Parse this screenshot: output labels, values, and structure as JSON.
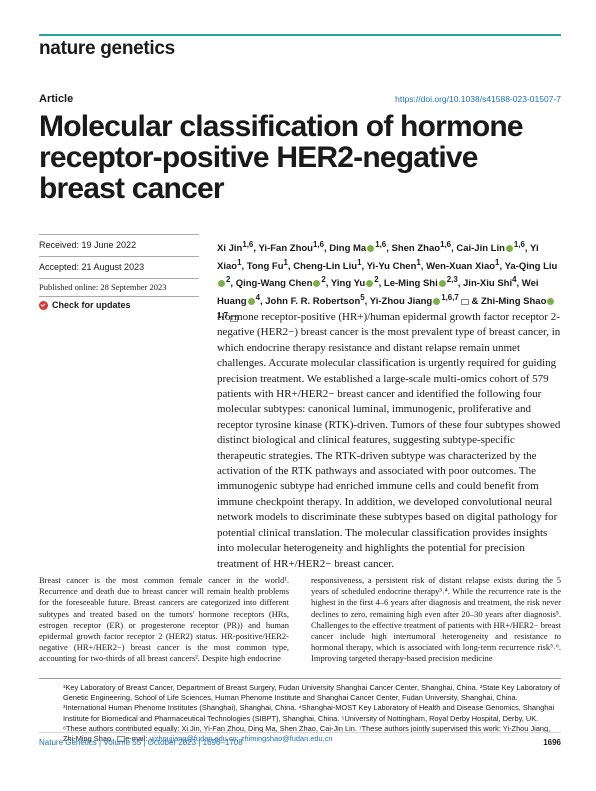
{
  "journal": {
    "name": "nature genetics"
  },
  "article": {
    "type": "Article",
    "doi": "https://doi.org/10.1038/s41588-023-01507-7",
    "title": "Molecular classification of hormone receptor-positive HER2-negative breast cancer"
  },
  "dates": {
    "received": "Received: 19 June 2022",
    "accepted": "Accepted: 21 August 2023",
    "published": "Published online: 28 September 2023"
  },
  "check_updates": "Check for updates",
  "authors": {
    "line1": "Xi Jin",
    "line1_sup": "1,6",
    "a2": "Yi-Fan Zhou",
    "a2_sup": "1,6",
    "a3": "Ding Ma",
    "a3_sup": "1,6",
    "a4": "Shen Zhao",
    "a4_sup": "1,6",
    "a5": "Cai-Jin Lin",
    "a5_sup": "1,6",
    "a6": "Yi Xiao",
    "a6_sup": "1",
    "a7": "Tong Fu",
    "a7_sup": "1",
    "a8": "Cheng-Lin Liu",
    "a8_sup": "1",
    "a9": "Yi-Yu Chen",
    "a9_sup": "1",
    "a10": "Wen-Xuan Xiao",
    "a10_sup": "1",
    "a11": "Ya-Qing Liu",
    "a11_sup": "2",
    "a12": "Qing-Wang Chen",
    "a12_sup": "2",
    "a13": "Ying Yu",
    "a13_sup": "2",
    "a14": "Le-Ming Shi",
    "a14_sup": "2,3",
    "a15": "Jin-Xiu Shi",
    "a15_sup": "4",
    "a16": "Wei Huang",
    "a16_sup": "4",
    "a17": "John F. R. Robertson",
    "a17_sup": "5",
    "a18": "Yi-Zhou Jiang",
    "a18_sup": "1,6,7",
    "a19": "Zhi-Ming Shao",
    "a19_sup": "1,7"
  },
  "abstract": "Hormone receptor-positive (HR+)/human epidermal growth factor receptor 2-negative (HER2−) breast cancer is the most prevalent type of breast cancer, in which endocrine therapy resistance and distant relapse remain unmet challenges. Accurate molecular classification is urgently required for guiding precision treatment. We established a large-scale multi-omics cohort of 579 patients with HR+/HER2− breast cancer and identified the following four molecular subtypes: canonical luminal, immunogenic, proliferative and receptor tyrosine kinase (RTK)-driven. Tumors of these four subtypes showed distinct biological and clinical features, suggesting subtype-specific therapeutic strategies. The RTK-driven subtype was characterized by the activation of the RTK pathways and associated with poor outcomes. The immunogenic subtype had enriched immune cells and could benefit from immune checkpoint therapy. In addition, we developed convolutional neural network models to discriminate these subtypes based on digital pathology for potential clinical translation. The molecular classification provides insights into molecular heterogeneity and highlights the potential for precision treatment of HR+/HER2− breast cancer.",
  "body": {
    "col1": "Breast cancer is the most common female cancer in the world¹. Recurrence and death due to breast cancer will remain health problems for the foreseeable future. Breast cancers are categorized into different subtypes and treated based on the tumors' hormone receptors (HRs, estrogen receptor (ER) or progesterone receptor (PR)) and human epidermal growth factor receptor 2 (HER2) status. HR-positive/HER2-negative (HR+/HER2−) breast cancer is the most common type, accounting for two-thirds of all breast cancers². Despite high endocrine",
    "col2": "responsiveness, a persistent risk of distant relapse exists during the 5 years of scheduled endocrine therapy³˒⁴. While the recurrence rate is the highest in the first 4–6 years after diagnosis and treatment, the risk never declines to zero, remaining high even after 20–30 years after diagnosis⁵. Challenges to the effective treatment of patients with HR+/HER2− breast cancer include high intertumoral heterogeneity and resistance to hormonal therapy, which is associated with long-term recurrence risk⁵˒⁶. Improving targeted therapy-based precision medicine"
  },
  "footnotes": {
    "affiliations": "¹Key Laboratory of Breast Cancer, Department of Breast Surgery, Fudan University Shanghai Cancer Center, Shanghai, China. ²State Key Laboratory of Genetic Engineering, School of Life Sciences, Human Phenome Institute and Shanghai Cancer Center, Fudan University, Shanghai, China. ³International Human Phenome Institutes (Shanghai), Shanghai, China. ⁴Shanghai-MOST Key Laboratory of Health and Disease Genomics, Shanghai Institute for Biomedical and Pharmaceutical Technologies (SIBPT), Shanghai, China. ⁵University of Nottingham, Royal Derby Hospital, Derby, UK. ⁶These authors contributed equally: Xi Jin, Yi-Fan Zhou, Ding Ma, Shen Zhao, Cai-Jin Lin. ⁷These authors jointly supervised this work: Yi-Zhou Jiang, Zhi-Ming Shao.",
    "email_label": "e-mail:",
    "emails": "yizhoujiang@fudan.edu.cn; zhimingshao@fudan.edu.cn"
  },
  "footer": {
    "citation": "Nature Genetics | Volume 55 | October 2023 | 1696–1708",
    "page": "1696"
  }
}
